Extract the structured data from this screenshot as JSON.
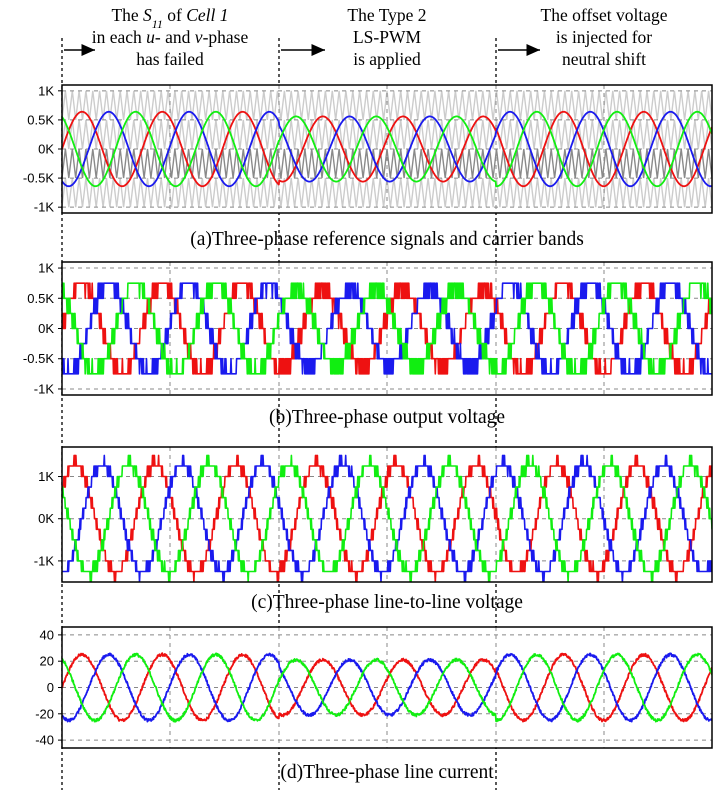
{
  "annotations": [
    {
      "lines": [
        [
          "The ",
          {
            "t": "S",
            "i": true
          },
          {
            "t": "11",
            "i": true,
            "sub": true
          },
          " of ",
          {
            "t": "Cell 1",
            "i": true
          }
        ],
        [
          "in each ",
          {
            "t": "u",
            "i": true
          },
          "- and ",
          {
            "t": "v",
            "i": true
          },
          "-phase"
        ],
        [
          "has failed"
        ]
      ]
    },
    {
      "lines": [
        [
          "The Type 2"
        ],
        [
          "LS-PWM"
        ],
        [
          "is applied"
        ]
      ]
    },
    {
      "lines": [
        [
          "The offset voltage"
        ],
        [
          "is injected for"
        ],
        [
          "neutral shift"
        ]
      ]
    }
  ],
  "colors": {
    "u": "#ee1111",
    "v": "#1a1aee",
    "w": "#11ee11",
    "carrier_light": "#cccccc",
    "carrier_dark": "#8a8a8a",
    "grid": "#888888"
  },
  "chart_data": [
    {
      "type": "line",
      "title": "(a)Three-phase reference signals and carrier bands",
      "yticks": [
        "1K",
        "0.5K",
        "0K",
        "-0.5K",
        "-1K"
      ],
      "ytick_values": [
        1000,
        500,
        0,
        -500,
        -1000
      ],
      "ylim": [
        -1100,
        1100
      ],
      "series": [
        {
          "color": "u",
          "amplitude": [
            640,
            560,
            640
          ],
          "phase_deg": 0
        },
        {
          "color": "v",
          "amplitude": [
            640,
            560,
            640
          ],
          "phase_deg": -120
        },
        {
          "color": "w",
          "amplitude": [
            640,
            560,
            640
          ],
          "phase_deg": 120
        }
      ],
      "carriers": true
    },
    {
      "type": "line",
      "title": "(b)Three-phase output voltage",
      "yticks": [
        "1K",
        "0.5K",
        "0K",
        "-0.5K",
        "-1K"
      ],
      "ytick_values": [
        1000,
        500,
        0,
        -500,
        -1000
      ],
      "ylim": [
        -1100,
        1100
      ],
      "series": [
        {
          "color": "u",
          "amplitude": [
            750,
            650,
            750
          ],
          "phase_deg": 0
        },
        {
          "color": "v",
          "amplitude": [
            750,
            650,
            750
          ],
          "phase_deg": -120
        },
        {
          "color": "w",
          "amplitude": [
            750,
            650,
            750
          ],
          "phase_deg": 120
        }
      ],
      "levels": 7,
      "level_step": 250
    },
    {
      "type": "line",
      "title": "(c)Three-phase line-to-line voltage",
      "yticks": [
        "1K",
        "0K",
        "-1K"
      ],
      "ytick_values": [
        1000,
        0,
        -1000
      ],
      "ylim": [
        -1500,
        1700
      ],
      "series": [
        {
          "color": "u",
          "amplitude": [
            1300,
            1300,
            1300
          ],
          "phase_deg": 30
        },
        {
          "color": "v",
          "amplitude": [
            1300,
            1300,
            1300
          ],
          "phase_deg": -90
        },
        {
          "color": "w",
          "amplitude": [
            1300,
            1300,
            1300
          ],
          "phase_deg": 150
        }
      ],
      "level_step": 250
    },
    {
      "type": "line",
      "title": "(d)Three-phase line current",
      "yticks": [
        "40",
        "20",
        "0",
        "-20",
        "-40"
      ],
      "ytick_values": [
        40,
        20,
        0,
        -20,
        -40
      ],
      "ylim": [
        -46,
        46
      ],
      "series": [
        {
          "color": "u",
          "amplitude": [
            25,
            21,
            25
          ],
          "phase_deg": 0
        },
        {
          "color": "v",
          "amplitude": [
            25,
            21,
            25
          ],
          "phase_deg": -120
        },
        {
          "color": "w",
          "amplitude": [
            25,
            21,
            25
          ],
          "phase_deg": 120
        }
      ],
      "noise": true
    }
  ]
}
